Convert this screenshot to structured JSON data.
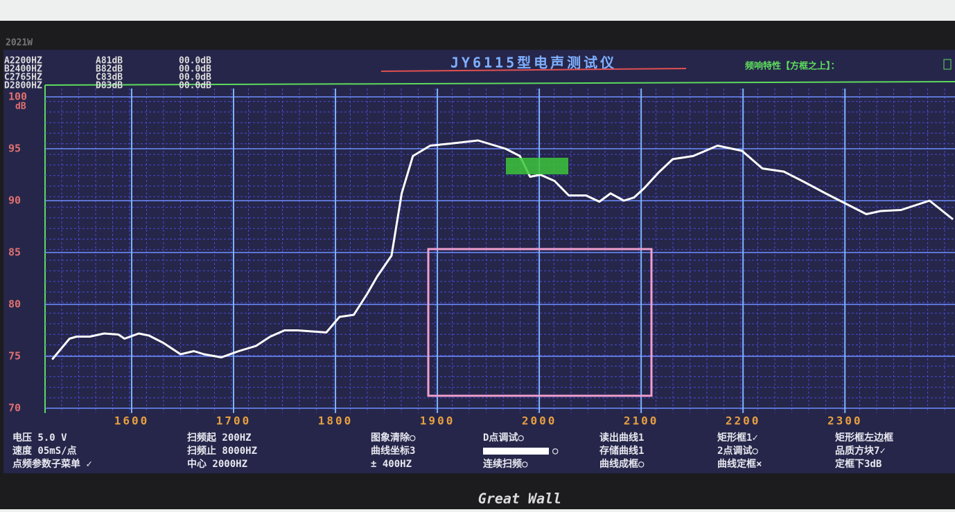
{
  "bezel_label": "2021W",
  "brand": "Great Wall",
  "markers": [
    [
      "A2200HZ",
      "A81dB",
      "00.0dB"
    ],
    [
      "B2400HZ",
      "B82dB",
      "00.0dB"
    ],
    [
      "C2765HZ",
      "C83dB",
      "00.0dB"
    ],
    [
      "D2800HZ",
      "D83dB",
      "00.0dB"
    ]
  ],
  "mode_label": "频响特性【方框之上】：",
  "menu": [
    [
      "电压  5.0 V",
      "扫频起  200HZ",
      "图象清除○",
      "D点调试○",
      "读出曲线1",
      "矩形框1✓",
      "矩形框左边框"
    ],
    [
      "速度  05mS/点",
      "扫频止 8000HZ",
      "曲线坐标3",
      "○",
      "存储曲线1",
      "2点调试○",
      "品质方块7✓"
    ],
    [
      "点频参数子菜单  ✓",
      "中心  2000HZ",
      "± 400HZ",
      "连续扫频○",
      "曲线成框○",
      "曲线定框×",
      "定框下3dB"
    ]
  ],
  "chart_data": {
    "type": "line",
    "title": "JY6115型电声测试仪",
    "y_label": "dB",
    "x": [
      1522,
      1539,
      1546,
      1559,
      1573,
      1587,
      1593,
      1607,
      1617,
      1631,
      1648,
      1661,
      1671,
      1688,
      1705,
      1722,
      1736,
      1750,
      1763,
      1791,
      1804,
      1818,
      1831,
      1841,
      1855,
      1865,
      1876,
      1893,
      1913,
      1940,
      1967,
      1981,
      1991,
      2001,
      2015,
      2029,
      2046,
      2059,
      2070,
      2083,
      2093,
      2103,
      2117,
      2131,
      2151,
      2175,
      2199,
      2219,
      2240,
      2260,
      2281,
      2301,
      2321,
      2335,
      2355,
      2383,
      2406
    ],
    "series": [
      {
        "color": "#ffffff",
        "values": [
          74.7,
          76.7,
          76.9,
          76.9,
          77.2,
          77.1,
          76.7,
          77.2,
          77.0,
          76.3,
          75.2,
          75.5,
          75.2,
          74.9,
          75.5,
          76.0,
          76.9,
          77.5,
          77.5,
          77.3,
          78.8,
          79.0,
          81.0,
          82.7,
          84.7,
          90.7,
          94.3,
          95.3,
          95.5,
          95.8,
          95.0,
          94.3,
          92.3,
          92.5,
          91.9,
          90.5,
          90.5,
          89.9,
          90.7,
          90.0,
          90.3,
          91.2,
          92.7,
          94.0,
          94.3,
          95.3,
          94.8,
          93.1,
          92.8,
          91.8,
          90.7,
          89.7,
          88.7,
          89.0,
          89.1,
          90.0,
          88.2
        ]
      }
    ],
    "xlim": [
      1515,
      2408
    ],
    "xticks": [
      1600,
      1700,
      1800,
      1900,
      2000,
      2100,
      2200,
      2300
    ],
    "ylim": [
      70,
      100
    ],
    "yticks": [
      70,
      75,
      80,
      85,
      90,
      95,
      100
    ],
    "grid": true
  }
}
